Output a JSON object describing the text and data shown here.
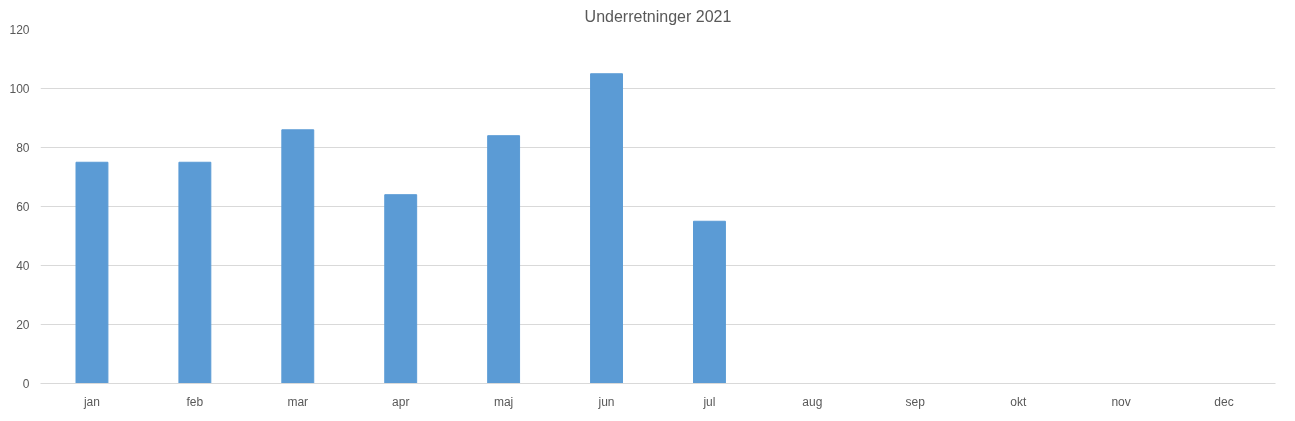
{
  "chart_data": {
    "type": "bar",
    "title": "Underretninger 2021",
    "categories": [
      "jan",
      "feb",
      "mar",
      "apr",
      "maj",
      "jun",
      "jul",
      "aug",
      "sep",
      "okt",
      "nov",
      "dec"
    ],
    "values": [
      75,
      75,
      86,
      64,
      84,
      105,
      55,
      null,
      null,
      null,
      null,
      null
    ],
    "color": "#5b9bd5",
    "ylim": [
      0,
      120
    ],
    "yticks": [
      0,
      20,
      40,
      60,
      80,
      100,
      120
    ],
    "grid": "y"
  }
}
